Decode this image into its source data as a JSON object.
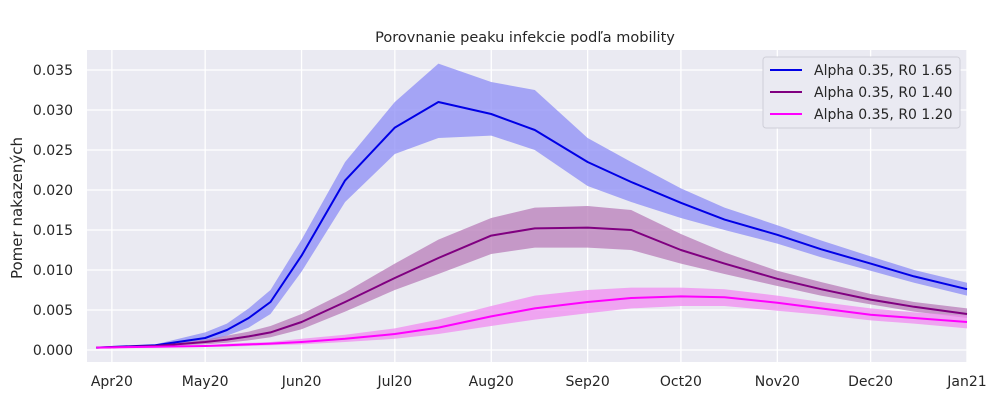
{
  "chart_data": {
    "type": "line",
    "title": "Porovnanie peaku infekcie podľa mobility",
    "xlabel": "",
    "ylabel": "Pomer nakazených",
    "xlim": [
      "2020-03-24",
      "2021-01-01"
    ],
    "ylim": [
      -0.0015,
      0.0375
    ],
    "grid": true,
    "legend_placement": "top-right",
    "background": "#eaeaf2",
    "x_ticks": [
      {
        "date": "2020-04-01",
        "label": "Apr20"
      },
      {
        "date": "2020-05-01",
        "label": "May20"
      },
      {
        "date": "2020-06-01",
        "label": "Jun20"
      },
      {
        "date": "2020-07-01",
        "label": "Jul20"
      },
      {
        "date": "2020-08-01",
        "label": "Aug20"
      },
      {
        "date": "2020-09-01",
        "label": "Sep20"
      },
      {
        "date": "2020-10-01",
        "label": "Oct20"
      },
      {
        "date": "2020-11-01",
        "label": "Nov20"
      },
      {
        "date": "2020-12-01",
        "label": "Dec20"
      },
      {
        "date": "2021-01-01",
        "label": "Jan21"
      }
    ],
    "y_ticks": [
      {
        "value": 0.0,
        "label": "0.000"
      },
      {
        "value": 0.005,
        "label": "0.005"
      },
      {
        "value": 0.01,
        "label": "0.010"
      },
      {
        "value": 0.015,
        "label": "0.015"
      },
      {
        "value": 0.02,
        "label": "0.020"
      },
      {
        "value": 0.025,
        "label": "0.025"
      },
      {
        "value": 0.03,
        "label": "0.030"
      },
      {
        "value": 0.035,
        "label": "0.035"
      }
    ],
    "x": [
      "2020-03-27",
      "2020-04-15",
      "2020-05-01",
      "2020-05-08",
      "2020-05-15",
      "2020-05-22",
      "2020-06-01",
      "2020-06-15",
      "2020-07-01",
      "2020-07-15",
      "2020-08-01",
      "2020-08-15",
      "2020-09-01",
      "2020-09-15",
      "2020-10-01",
      "2020-10-15",
      "2020-11-01",
      "2020-11-15",
      "2020-12-01",
      "2020-12-15",
      "2021-01-01"
    ],
    "series": [
      {
        "name": "Alpha 0.35, R0 1.65",
        "color": "#0000e6",
        "band_color": "#8c8cf5",
        "values": [
          0.0003,
          0.0006,
          0.0015,
          0.0025,
          0.004,
          0.006,
          0.0118,
          0.0212,
          0.0278,
          0.031,
          0.0295,
          0.0275,
          0.0235,
          0.021,
          0.0184,
          0.0163,
          0.0144,
          0.0126,
          0.0108,
          0.0092,
          0.0076
        ],
        "lower": [
          0.0003,
          0.0005,
          0.001,
          0.0018,
          0.0028,
          0.0045,
          0.0098,
          0.0185,
          0.0245,
          0.0265,
          0.0268,
          0.025,
          0.0205,
          0.0185,
          0.0165,
          0.015,
          0.0133,
          0.0116,
          0.0099,
          0.0084,
          0.0068
        ],
        "upper": [
          0.0003,
          0.0007,
          0.0022,
          0.0033,
          0.0052,
          0.0075,
          0.0138,
          0.0235,
          0.031,
          0.0358,
          0.0335,
          0.0325,
          0.0265,
          0.0235,
          0.0202,
          0.0178,
          0.0156,
          0.0137,
          0.0117,
          0.01,
          0.0084
        ]
      },
      {
        "name": "Alpha 0.35, R0 1.40",
        "color": "#800080",
        "band_color": "#b87cb8",
        "values": [
          0.0003,
          0.0005,
          0.001,
          0.0013,
          0.0017,
          0.0022,
          0.0035,
          0.006,
          0.009,
          0.0115,
          0.0143,
          0.0152,
          0.0153,
          0.015,
          0.0125,
          0.0108,
          0.0089,
          0.0076,
          0.0063,
          0.0054,
          0.0045
        ],
        "lower": [
          0.0003,
          0.0004,
          0.0007,
          0.0009,
          0.0012,
          0.0016,
          0.0026,
          0.0048,
          0.0075,
          0.0095,
          0.012,
          0.0128,
          0.0128,
          0.0125,
          0.0108,
          0.0095,
          0.008,
          0.0068,
          0.0057,
          0.0048,
          0.004
        ],
        "upper": [
          0.0003,
          0.0006,
          0.0013,
          0.0018,
          0.0023,
          0.003,
          0.0045,
          0.0072,
          0.0108,
          0.0138,
          0.0165,
          0.0178,
          0.018,
          0.0175,
          0.0145,
          0.0122,
          0.0099,
          0.0085,
          0.007,
          0.006,
          0.0052
        ]
      },
      {
        "name": "Alpha 0.35, R0 1.20",
        "color": "#ff00ff",
        "band_color": "#f08cf0",
        "values": [
          0.0003,
          0.0004,
          0.0005,
          0.0006,
          0.0007,
          0.0008,
          0.001,
          0.0014,
          0.002,
          0.0028,
          0.0042,
          0.0052,
          0.006,
          0.0065,
          0.0067,
          0.0066,
          0.0059,
          0.0052,
          0.0044,
          0.004,
          0.0035
        ],
        "lower": [
          0.0003,
          0.0003,
          0.0004,
          0.0004,
          0.0005,
          0.0006,
          0.0007,
          0.001,
          0.0014,
          0.002,
          0.003,
          0.0038,
          0.0046,
          0.0052,
          0.0055,
          0.0055,
          0.0049,
          0.0044,
          0.0037,
          0.0033,
          0.0027
        ],
        "upper": [
          0.0003,
          0.0005,
          0.0006,
          0.0008,
          0.0009,
          0.001,
          0.0014,
          0.0019,
          0.0027,
          0.0038,
          0.0055,
          0.0068,
          0.0075,
          0.0078,
          0.0078,
          0.0076,
          0.0068,
          0.006,
          0.0052,
          0.0047,
          0.0043
        ]
      }
    ]
  }
}
